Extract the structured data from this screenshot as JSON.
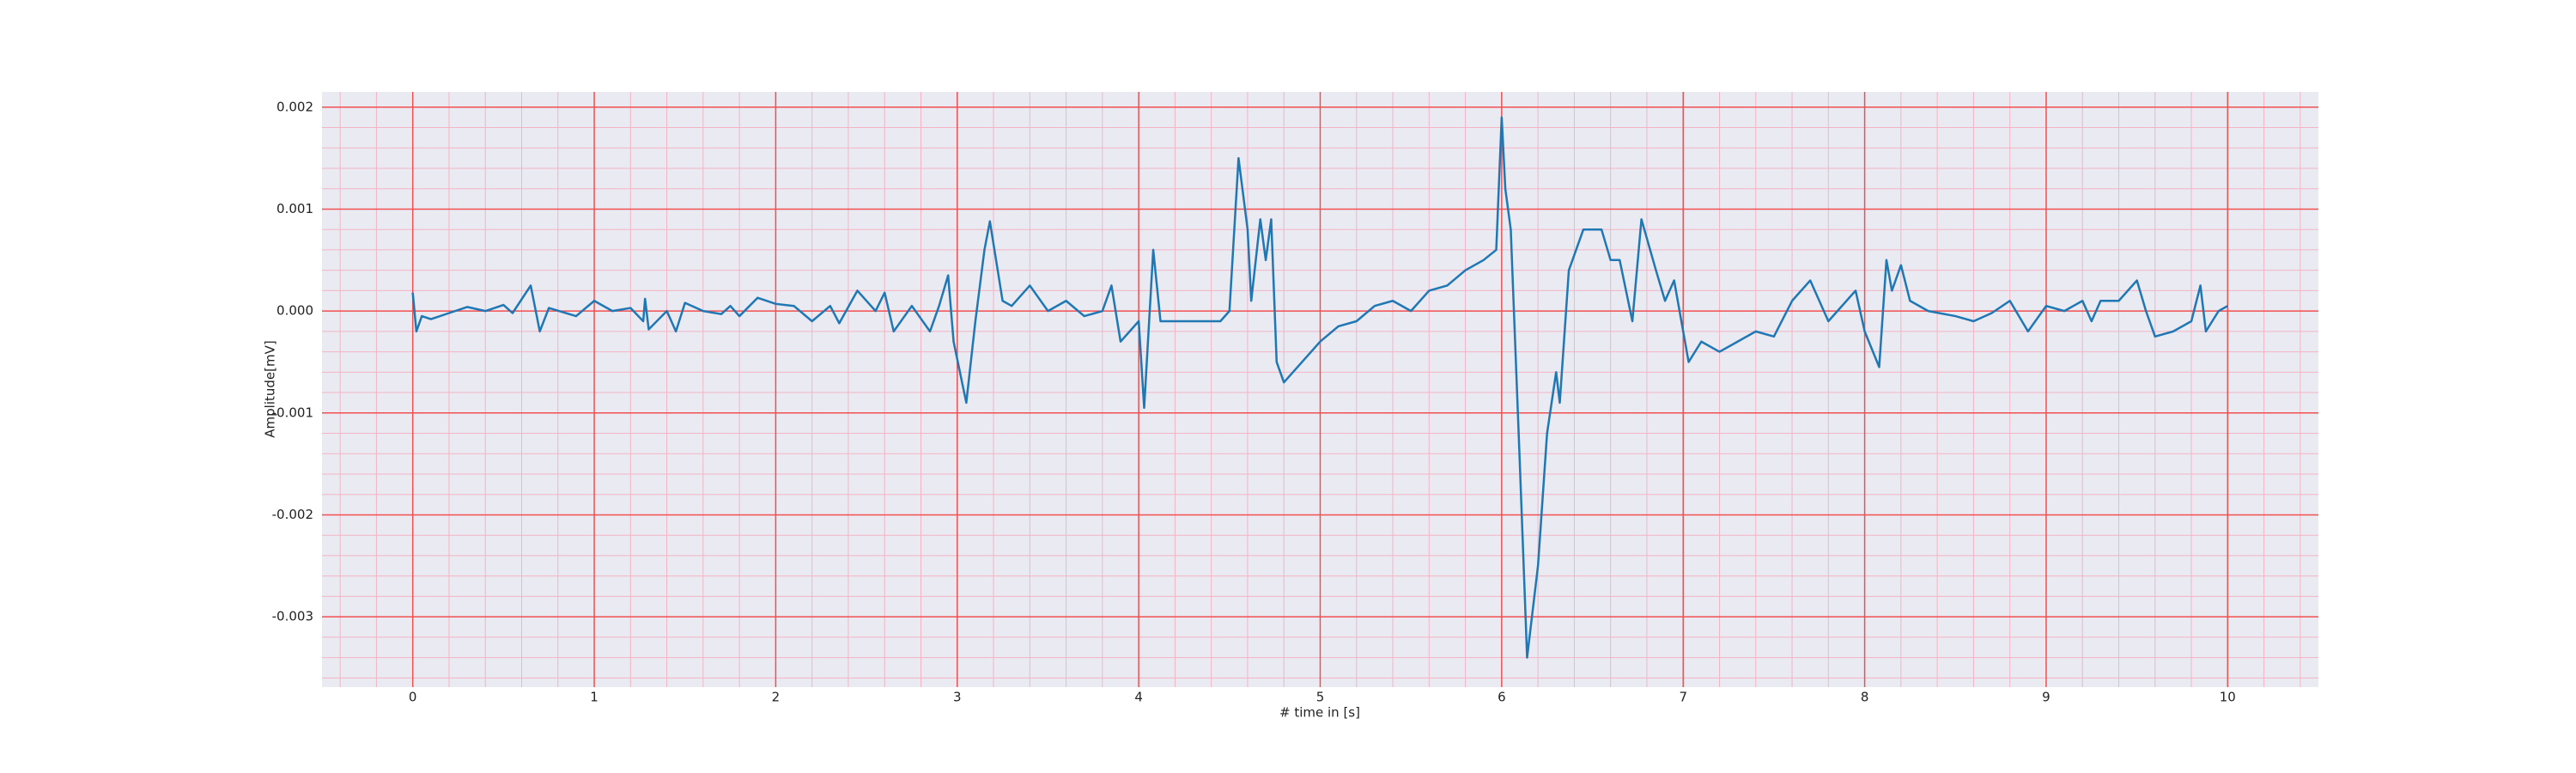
{
  "chart_data": {
    "type": "line",
    "xlabel": "# time in [s]",
    "ylabel": "Amplitude[mV]",
    "color": "#1f77b4",
    "grid": true,
    "minor_grid": true,
    "xlim": [
      -0.5,
      10.5
    ],
    "ylim": [
      -0.00369,
      0.00215
    ],
    "xticks": [
      0,
      1,
      2,
      3,
      4,
      5,
      6,
      7,
      8,
      9,
      10
    ],
    "yticks": [
      -0.003,
      -0.002,
      -0.001,
      {
        "value": 0,
        "label": "0.000"
      },
      0.001,
      0.002
    ],
    "x": [
      0,
      0.02,
      0.05,
      0.1,
      0.2,
      0.3,
      0.4,
      0.5,
      0.55,
      0.65,
      0.7,
      0.75,
      0.9,
      1.0,
      1.1,
      1.2,
      1.27,
      1.28,
      1.3,
      1.4,
      1.45,
      1.5,
      1.6,
      1.7,
      1.75,
      1.8,
      1.9,
      2.0,
      2.1,
      2.2,
      2.3,
      2.35,
      2.45,
      2.55,
      2.6,
      2.65,
      2.75,
      2.85,
      2.9,
      2.95,
      2.98,
      3.05,
      3.1,
      3.15,
      3.18,
      3.25,
      3.3,
      3.4,
      3.5,
      3.6,
      3.7,
      3.8,
      3.85,
      3.9,
      3.95,
      4.0,
      4.03,
      4.08,
      4.12,
      4.3,
      4.45,
      4.5,
      4.55,
      4.6,
      4.62,
      4.67,
      4.7,
      4.73,
      4.76,
      4.8,
      4.9,
      5.0,
      5.1,
      5.2,
      5.3,
      5.4,
      5.5,
      5.6,
      5.7,
      5.8,
      5.9,
      5.97,
      6.0,
      6.02,
      6.05,
      6.1,
      6.14,
      6.2,
      6.25,
      6.3,
      6.32,
      6.37,
      6.45,
      6.55,
      6.6,
      6.65,
      6.72,
      6.77,
      6.85,
      6.9,
      6.95,
      7.03,
      7.1,
      7.2,
      7.3,
      7.4,
      7.5,
      7.6,
      7.7,
      7.8,
      7.9,
      7.95,
      8.0,
      8.08,
      8.12,
      8.15,
      8.2,
      8.25,
      8.35,
      8.5,
      8.6,
      8.7,
      8.8,
      8.9,
      9.0,
      9.1,
      9.2,
      9.25,
      9.3,
      9.4,
      9.5,
      9.55,
      9.6,
      9.7,
      9.8,
      9.85,
      9.88,
      9.95,
      10.0
    ],
    "values": [
      0.00018,
      -0.0002,
      -5e-05,
      -8e-05,
      -2e-05,
      4e-05,
      0.0,
      6e-05,
      -2e-05,
      0.00025,
      -0.0002,
      3e-05,
      -5e-05,
      0.0001,
      0.0,
      3e-05,
      -0.0001,
      0.00012,
      -0.00018,
      0.0,
      -0.0002,
      8e-05,
      0.0,
      -3e-05,
      5e-05,
      -5e-05,
      0.00013,
      7e-05,
      5e-05,
      -0.0001,
      5e-05,
      -0.00012,
      0.0002,
      0.0,
      0.00018,
      -0.0002,
      5e-05,
      -0.0002,
      5e-05,
      0.00035,
      -0.0003,
      -0.0009,
      -0.0001,
      0.0006,
      0.00088,
      0.0001,
      5e-05,
      0.00025,
      0.0,
      0.0001,
      -5e-05,
      0.0,
      0.00025,
      -0.0003,
      -0.0002,
      -0.0001,
      -0.00095,
      0.0006,
      -0.0001,
      -0.0001,
      -0.0001,
      0.0,
      0.0015,
      0.0008,
      0.0001,
      0.0009,
      0.0005,
      0.0009,
      -0.0005,
      -0.0007,
      -0.0005,
      -0.0003,
      -0.00015,
      -0.0001,
      5e-05,
      0.0001,
      0.0,
      0.0002,
      0.00025,
      0.0004,
      0.0005,
      0.0006,
      0.0019,
      0.0012,
      0.0008,
      -0.0015,
      -0.0034,
      -0.0025,
      -0.0012,
      -0.0006,
      -0.0009,
      0.0004,
      0.0008,
      0.0008,
      0.0005,
      0.0005,
      -0.0001,
      0.0009,
      0.0004,
      0.0001,
      0.0003,
      -0.0005,
      -0.0003,
      -0.0004,
      -0.0003,
      -0.0002,
      -0.00025,
      0.0001,
      0.0003,
      -0.0001,
      0.0001,
      0.0002,
      -0.0002,
      -0.00055,
      0.0005,
      0.0002,
      0.00045,
      0.0001,
      0.0,
      -5e-05,
      -0.0001,
      -2e-05,
      0.0001,
      -0.0002,
      5e-05,
      0.0,
      0.0001,
      -0.0001,
      0.0001,
      0.0001,
      0.0003,
      0.0,
      -0.00025,
      -0.0002,
      -0.0001,
      0.00025,
      -0.0002,
      0.0,
      5e-05
    ]
  }
}
